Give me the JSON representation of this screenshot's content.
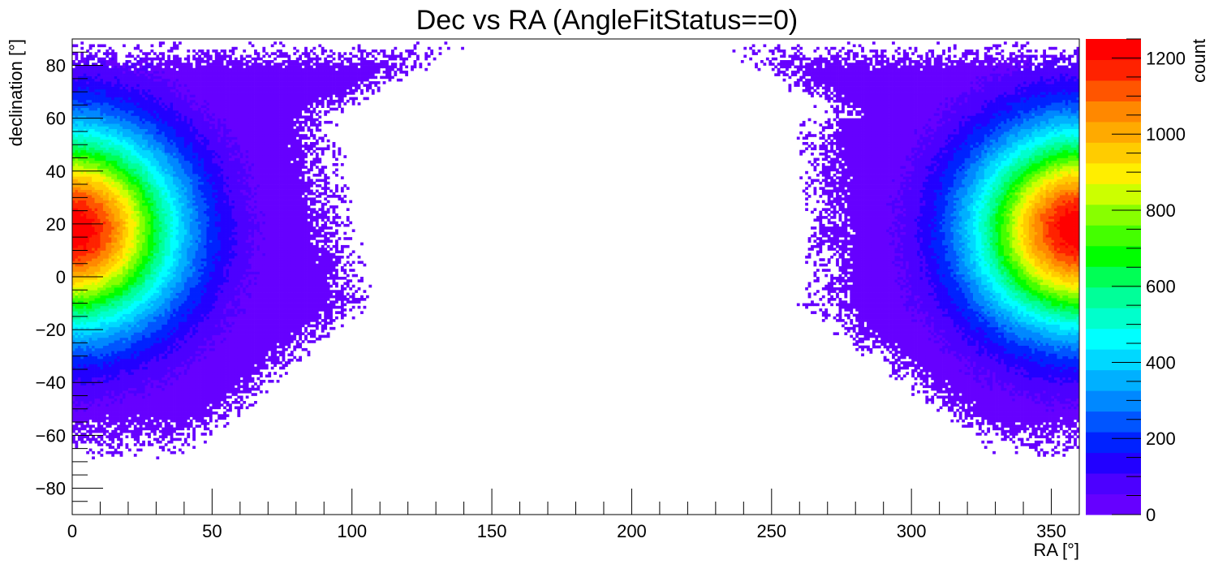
{
  "chart_data": {
    "type": "heatmap",
    "title": "Dec vs RA (AngleFitStatus==0)",
    "xlabel": "RA [°]",
    "ylabel": "declination [°]",
    "zlabel": "count",
    "xlim": [
      0,
      360
    ],
    "ylim": [
      -90,
      90
    ],
    "zlim": [
      0,
      1250
    ],
    "x_ticks": [
      0,
      50,
      100,
      150,
      200,
      250,
      300,
      350
    ],
    "y_ticks": [
      -80,
      -60,
      -40,
      -20,
      0,
      20,
      40,
      60,
      80
    ],
    "z_ticks": [
      0,
      200,
      400,
      600,
      800,
      1000,
      1200
    ],
    "x_tick_labels": [
      "0",
      "50",
      "100",
      "150",
      "200",
      "250",
      "300",
      "350"
    ],
    "y_tick_labels": [
      "−80",
      "−60",
      "−40",
      "−20",
      "0",
      "20",
      "40",
      "60",
      "80"
    ],
    "z_tick_labels": [
      "0",
      "200",
      "400",
      "600",
      "800",
      "1000",
      "1200"
    ],
    "bins": {
      "nx": 360,
      "ny": 180
    },
    "peak": {
      "ra": 0,
      "dec": 18,
      "count": 1250
    },
    "palette": [
      "#6600ff",
      "#4c00ff",
      "#2200ff",
      "#0022ff",
      "#0055ff",
      "#0088ff",
      "#00b0ff",
      "#00d8ff",
      "#00ffff",
      "#00ffcc",
      "#00ff99",
      "#00ff55",
      "#00ff00",
      "#44ff00",
      "#88ff00",
      "#ccff00",
      "#ffee00",
      "#ffcc00",
      "#ffaa00",
      "#ff8800",
      "#ff5500",
      "#ff2200",
      "#ff0000"
    ],
    "grid": false
  }
}
